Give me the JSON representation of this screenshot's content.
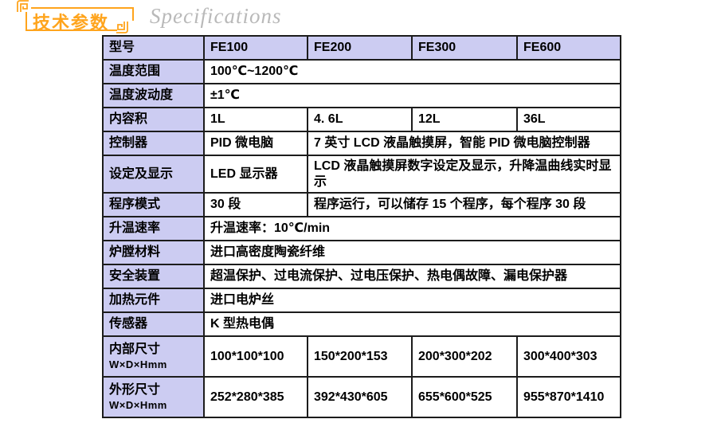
{
  "header": {
    "title_cn": "技术参数",
    "title_en": "Specifications"
  },
  "colors": {
    "accent_orange": "#FFA41C",
    "table_header_fill": "#ccccf2",
    "table_border": "#1c1c1c",
    "title_en_gray": "#b9b9b9",
    "text": "#000000"
  },
  "icons": {
    "top_left": "meander-ornament",
    "bottom_right": "meander-ornament"
  },
  "table": {
    "columns": [
      "型号",
      "FE100",
      "FE200",
      "FE300",
      "FE600"
    ],
    "rows": [
      {
        "label": "温度范围",
        "cells": [
          {
            "text": "100℃~1200℃",
            "span": 4
          }
        ]
      },
      {
        "label": "温度波动度",
        "cells": [
          {
            "text": "±1℃",
            "span": 4
          }
        ]
      },
      {
        "label": "内容积",
        "cells": [
          {
            "text": "1L"
          },
          {
            "text": "4. 6L"
          },
          {
            "text": "12L"
          },
          {
            "text": "36L"
          }
        ]
      },
      {
        "label": "控制器",
        "cells": [
          {
            "text": "PID 微电脑"
          },
          {
            "text": "7 英寸 LCD 液晶触摸屏，智能 PID 微电脑控制器",
            "span": 3
          }
        ]
      },
      {
        "label": "设定及显示",
        "cells": [
          {
            "text": "LED 显示器"
          },
          {
            "text": "LCD 液晶触摸屏数字设定及显示，升降温曲线实时显示",
            "span": 3
          }
        ]
      },
      {
        "label": "程序模式",
        "cells": [
          {
            "text": "30 段"
          },
          {
            "text": "程序运行，可以储存 15 个程序，每个程序 30 段",
            "span": 3
          }
        ]
      },
      {
        "label": "升温速率",
        "cells": [
          {
            "text": "升温速率：10℃/min",
            "span": 4
          }
        ]
      },
      {
        "label": "炉膛材料",
        "cells": [
          {
            "text": "进口高密度陶瓷纤维",
            "span": 4
          }
        ]
      },
      {
        "label": "安全装置",
        "cells": [
          {
            "text": "超温保护、过电流保护、过电压保护、热电偶故障、漏电保护器",
            "span": 4
          }
        ]
      },
      {
        "label": "加热元件",
        "cells": [
          {
            "text": "进口电炉丝",
            "span": 4
          }
        ]
      },
      {
        "label": "传感器",
        "cells": [
          {
            "text": "K 型热电偶",
            "span": 4
          }
        ]
      },
      {
        "label": "内部尺寸",
        "label_sub": "W×D×Hmm",
        "cells": [
          {
            "text": "100*100*100"
          },
          {
            "text": "150*200*153"
          },
          {
            "text": "200*300*202"
          },
          {
            "text": "300*400*303"
          }
        ]
      },
      {
        "label": "外形尺寸",
        "label_sub": "W×D×Hmm",
        "cells": [
          {
            "text": "252*280*385"
          },
          {
            "text": "392*430*605"
          },
          {
            "text": "655*600*525"
          },
          {
            "text": "955*870*1410"
          }
        ]
      }
    ]
  }
}
